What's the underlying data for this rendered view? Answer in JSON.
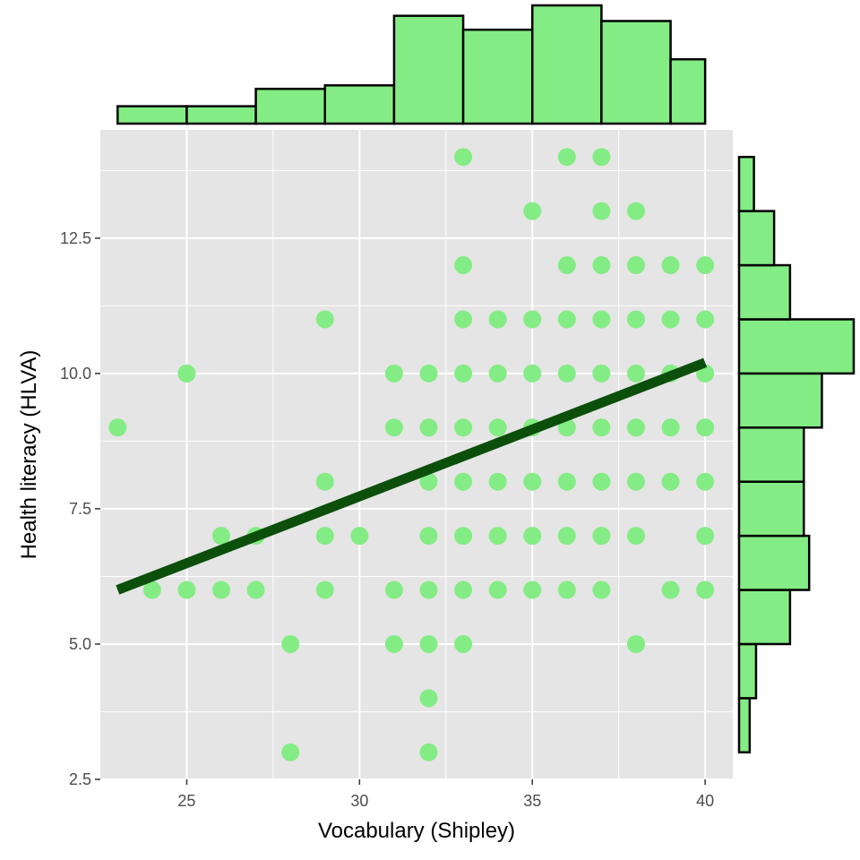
{
  "chart_data": {
    "type": "scatter",
    "xlabel": "Vocabulary (Shipley)",
    "ylabel": "Health literacy (HLVA)",
    "xlim": [
      22.5,
      40.8
    ],
    "ylim": [
      2.5,
      14.5
    ],
    "x_ticks": [
      25,
      30,
      35,
      40
    ],
    "x_tick_labels": [
      "25",
      "30",
      "35",
      "40"
    ],
    "y_ticks": [
      2.5,
      5.0,
      7.5,
      10.0,
      12.5
    ],
    "y_tick_labels": [
      "2.5",
      "5.0",
      "7.5",
      "10.0",
      "12.5"
    ],
    "grid": true,
    "point_color": "#84ec84",
    "line_color": "#0b4f0b",
    "panel_color": "#e5e5e5",
    "points": [
      [
        33,
        14
      ],
      [
        36,
        14
      ],
      [
        37,
        14
      ],
      [
        35,
        13
      ],
      [
        37,
        13
      ],
      [
        38,
        13
      ],
      [
        33,
        12
      ],
      [
        36,
        12
      ],
      [
        37,
        12
      ],
      [
        38,
        12
      ],
      [
        39,
        12
      ],
      [
        40,
        12
      ],
      [
        29,
        11
      ],
      [
        33,
        11
      ],
      [
        34,
        11
      ],
      [
        35,
        11
      ],
      [
        36,
        11
      ],
      [
        37,
        11
      ],
      [
        38,
        11
      ],
      [
        39,
        11
      ],
      [
        40,
        11
      ],
      [
        25,
        10
      ],
      [
        31,
        10
      ],
      [
        32,
        10
      ],
      [
        33,
        10
      ],
      [
        34,
        10
      ],
      [
        35,
        10
      ],
      [
        36,
        10
      ],
      [
        37,
        10
      ],
      [
        38,
        10
      ],
      [
        39,
        10
      ],
      [
        40,
        10
      ],
      [
        23,
        9
      ],
      [
        31,
        9
      ],
      [
        32,
        9
      ],
      [
        33,
        9
      ],
      [
        34,
        9
      ],
      [
        35,
        9
      ],
      [
        36,
        9
      ],
      [
        37,
        9
      ],
      [
        38,
        9
      ],
      [
        39,
        9
      ],
      [
        40,
        9
      ],
      [
        29,
        8
      ],
      [
        32,
        8
      ],
      [
        33,
        8
      ],
      [
        34,
        8
      ],
      [
        35,
        8
      ],
      [
        36,
        8
      ],
      [
        37,
        8
      ],
      [
        38,
        8
      ],
      [
        39,
        8
      ],
      [
        40,
        8
      ],
      [
        26,
        7
      ],
      [
        27,
        7
      ],
      [
        29,
        7
      ],
      [
        30,
        7
      ],
      [
        32,
        7
      ],
      [
        33,
        7
      ],
      [
        34,
        7
      ],
      [
        35,
        7
      ],
      [
        36,
        7
      ],
      [
        37,
        7
      ],
      [
        38,
        7
      ],
      [
        40,
        7
      ],
      [
        24,
        6
      ],
      [
        25,
        6
      ],
      [
        26,
        6
      ],
      [
        27,
        6
      ],
      [
        29,
        6
      ],
      [
        31,
        6
      ],
      [
        32,
        6
      ],
      [
        33,
        6
      ],
      [
        34,
        6
      ],
      [
        35,
        6
      ],
      [
        36,
        6
      ],
      [
        37,
        6
      ],
      [
        39,
        6
      ],
      [
        40,
        6
      ],
      [
        28,
        5
      ],
      [
        31,
        5
      ],
      [
        32,
        5
      ],
      [
        33,
        5
      ],
      [
        38,
        5
      ],
      [
        32,
        4
      ],
      [
        28,
        3
      ],
      [
        32,
        3
      ]
    ],
    "fit_line": {
      "x": [
        23,
        40
      ],
      "y": [
        6.0,
        10.2
      ]
    },
    "x_hist": {
      "bin_edges": [
        23,
        25,
        27,
        29,
        31,
        33,
        35,
        37,
        39,
        40
      ],
      "counts": [
        1,
        1,
        2,
        2.2,
        6.2,
        5.4,
        6.8,
        5.9,
        3.7
      ]
    },
    "y_hist": {
      "bin_edges": [
        3,
        4,
        5,
        6,
        7,
        8,
        9,
        10,
        11,
        12,
        13,
        14
      ],
      "counts": [
        1,
        1.6,
        4.8,
        6.6,
        6.1,
        6.1,
        7.8,
        10.8,
        4.8,
        3.3,
        1.4
      ]
    }
  }
}
